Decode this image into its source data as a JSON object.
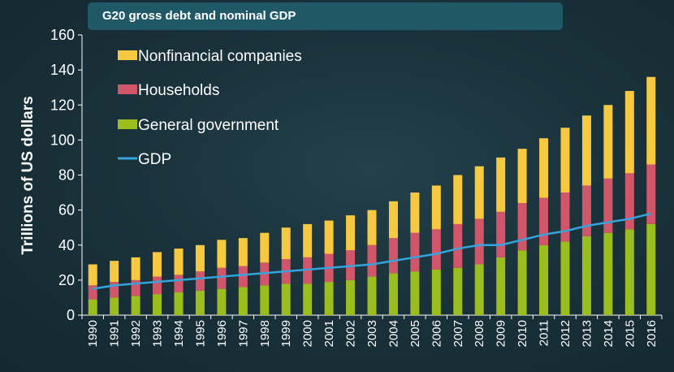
{
  "colors": {
    "nonfinancial": "#f6c940",
    "households": "#d2566a",
    "government": "#9bbd1e",
    "gdp": "#35a4dc",
    "axis": "#ffffff"
  },
  "chart_data": {
    "type": "bar",
    "stacked": true,
    "title": "G20 gross debt and nominal GDP",
    "ylabel": "Trillions of US dollars",
    "xlabel": "",
    "ylim": [
      0,
      160
    ],
    "yticks": [
      0,
      20,
      40,
      60,
      80,
      100,
      120,
      140,
      160
    ],
    "legend_position": "top-left",
    "categories": [
      "1990",
      "1991",
      "1992",
      "1993",
      "1994",
      "1995",
      "1996",
      "1997",
      "1998",
      "1999",
      "2000",
      "2001",
      "2002",
      "2003",
      "2004",
      "2005",
      "2006",
      "2007",
      "2008",
      "2009",
      "2010",
      "2011",
      "2012",
      "2013",
      "2014",
      "2015",
      "2016"
    ],
    "series": [
      {
        "name": "General government",
        "key": "government",
        "values": [
          9,
          10,
          11,
          12,
          13,
          14,
          15,
          16,
          17,
          18,
          18,
          19,
          20,
          22,
          24,
          25,
          26,
          27,
          29,
          33,
          37,
          40,
          42,
          45,
          47,
          49,
          52
        ]
      },
      {
        "name": "Households",
        "key": "households",
        "values": [
          8,
          9,
          9,
          10,
          10,
          11,
          12,
          12,
          13,
          14,
          15,
          16,
          17,
          18,
          20,
          22,
          23,
          25,
          26,
          26,
          27,
          27,
          28,
          29,
          31,
          32,
          34
        ]
      },
      {
        "name": "Nonfinancial companies",
        "key": "nonfinancial",
        "values": [
          12,
          12,
          13,
          14,
          15,
          15,
          16,
          16,
          17,
          18,
          19,
          19,
          20,
          20,
          21,
          23,
          25,
          28,
          30,
          31,
          31,
          34,
          37,
          40,
          42,
          47,
          50
        ]
      }
    ],
    "gdp": {
      "name": "GDP",
      "values": [
        15,
        17,
        18,
        19,
        20,
        21,
        22,
        23,
        24,
        25,
        26,
        27,
        28,
        29,
        31,
        33,
        35,
        38,
        40,
        40,
        43,
        46,
        48,
        51,
        53,
        55,
        58
      ]
    },
    "legend": [
      {
        "label": "Nonfinancial companies",
        "key": "nonfinancial",
        "kind": "swatch"
      },
      {
        "label": "Households",
        "key": "households",
        "kind": "swatch"
      },
      {
        "label": "General government",
        "key": "government",
        "kind": "swatch"
      },
      {
        "label": "GDP",
        "key": "gdp",
        "kind": "line"
      }
    ]
  }
}
